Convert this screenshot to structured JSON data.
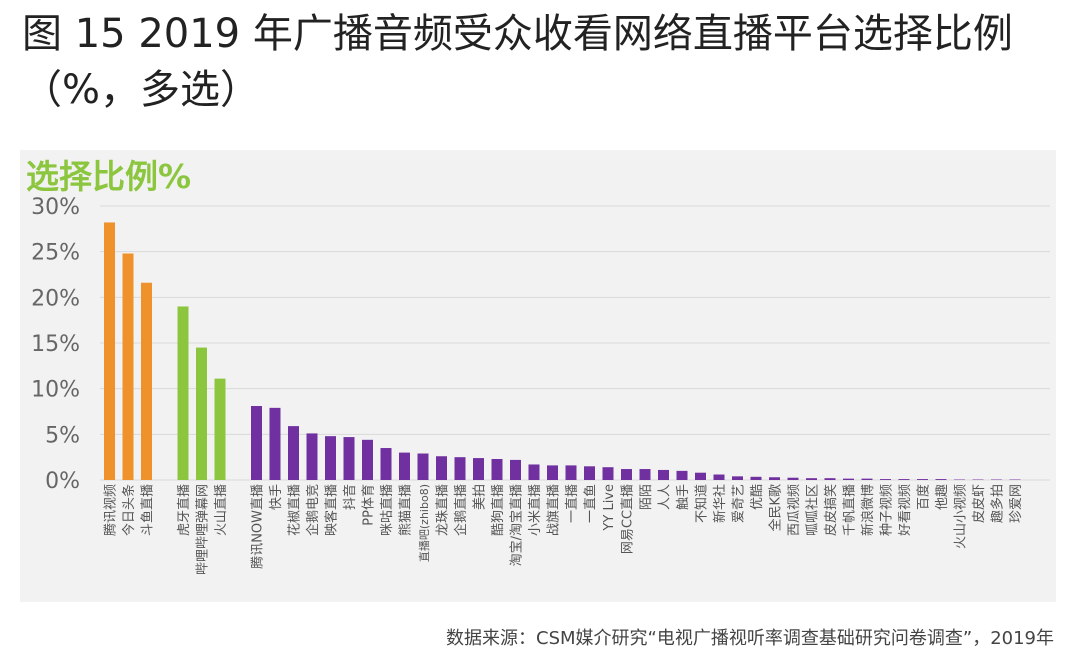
{
  "title": "图 15 2019 年广播音频受众收看网络直播平台选择比例（%，多选）",
  "source": "数据来源：CSM媒介研究“电视广播视听率调查基础研究问卷调查”，2019年",
  "colors": {
    "orange": "#f0922b",
    "green": "#8cc63f",
    "purple": "#7030a0",
    "title_green": "#8cc63f"
  },
  "chart_data": {
    "type": "bar",
    "ylabel": "选择比例%",
    "ylim": [
      0,
      30
    ],
    "yticks": [
      "0%",
      "5%",
      "10%",
      "15%",
      "20%",
      "25%",
      "30%"
    ],
    "grid": true,
    "groups": [
      {
        "color": "orange",
        "bars": [
          {
            "label": "腾讯视频",
            "value": 28.2
          },
          {
            "label": "今日头条",
            "value": 24.8
          },
          {
            "label": "斗鱼直播",
            "value": 21.6
          }
        ]
      },
      {
        "color": "green",
        "bars": [
          {
            "label": "虎牙直播",
            "value": 19.0
          },
          {
            "label": "哔哩哔哩弹幕网",
            "value": 14.5
          },
          {
            "label": "火山直播",
            "value": 11.1
          }
        ]
      },
      {
        "color": "purple",
        "bars": [
          {
            "label": "腾讯NOW直播",
            "value": 8.1
          },
          {
            "label": "快手",
            "value": 7.9
          },
          {
            "label": "花椒直播",
            "value": 5.9
          },
          {
            "label": "企鹅电竞",
            "value": 5.1
          },
          {
            "label": "映客直播",
            "value": 4.8
          },
          {
            "label": "抖音",
            "value": 4.7
          },
          {
            "label": "PP体育",
            "value": 4.4
          },
          {
            "label": "咪咕直播",
            "value": 3.5
          },
          {
            "label": "熊猫直播",
            "value": 3.0
          },
          {
            "label": "直播吧(zhibo8)",
            "value": 2.9
          },
          {
            "label": "龙珠直播",
            "value": 2.6
          },
          {
            "label": "企鹅直播",
            "value": 2.5
          },
          {
            "label": "美拍",
            "value": 2.4
          },
          {
            "label": "酷狗直播",
            "value": 2.3
          },
          {
            "label": "淘宝/淘宝直播",
            "value": 2.2
          },
          {
            "label": "小米直播",
            "value": 1.7
          },
          {
            "label": "战旗直播",
            "value": 1.6
          },
          {
            "label": "一直播",
            "value": 1.6
          },
          {
            "label": "一直鱼",
            "value": 1.5
          },
          {
            "label": "YY Live",
            "value": 1.4
          },
          {
            "label": "网易CC直播",
            "value": 1.2
          },
          {
            "label": "陌陌",
            "value": 1.2
          },
          {
            "label": "人人",
            "value": 1.1
          },
          {
            "label": "触手",
            "value": 1.0
          },
          {
            "label": "不知道",
            "value": 0.8
          },
          {
            "label": "新华社",
            "value": 0.6
          },
          {
            "label": "爱奇艺",
            "value": 0.4
          },
          {
            "label": "优酷",
            "value": 0.35
          },
          {
            "label": "全民K歌",
            "value": 0.3
          },
          {
            "label": "西瓜视频",
            "value": 0.25
          },
          {
            "label": "呱呱社区",
            "value": 0.2
          },
          {
            "label": "皮皮搞笑",
            "value": 0.2
          },
          {
            "label": "千帆直播",
            "value": 0.15
          },
          {
            "label": "新浪微博",
            "value": 0.15
          },
          {
            "label": "种子视频",
            "value": 0.1
          },
          {
            "label": "好看视频",
            "value": 0.1
          },
          {
            "label": "百度",
            "value": 0.1
          },
          {
            "label": "他趣",
            "value": 0.1
          },
          {
            "label": "火山小视频",
            "value": 0.05
          },
          {
            "label": "皮皮虾",
            "value": 0.05
          },
          {
            "label": "趣多拍",
            "value": 0.05
          },
          {
            "label": "珍爱网",
            "value": 0.05
          }
        ]
      }
    ]
  }
}
